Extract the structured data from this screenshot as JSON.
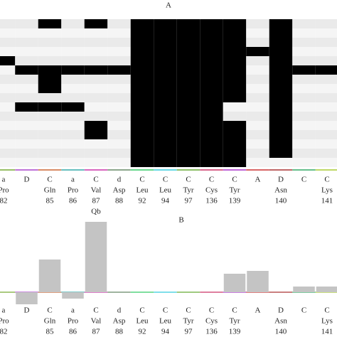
{
  "chart_data": [
    {
      "type": "heatmap",
      "title": "A",
      "categories": [
        "a",
        "D",
        "C",
        "a",
        "C",
        "d",
        "C",
        "C",
        "C",
        "C",
        "C",
        "A",
        "D",
        "C",
        "C"
      ],
      "residues": [
        "Pro",
        null,
        "Gln",
        "Pro",
        "Val",
        "Asp",
        "Leu",
        "Leu",
        "Tyr",
        "Cys",
        "Tyr",
        null,
        "Asn",
        null,
        "Lys"
      ],
      "positions": [
        "82",
        null,
        "85",
        "86",
        "87",
        "88",
        "92",
        "94",
        "97",
        "136",
        "139",
        null,
        "140",
        null,
        "141"
      ],
      "colors": [
        "#eaeaea",
        "#000000"
      ],
      "alt_color": "#f5f5f5",
      "values": [
        [
          0,
          0,
          1,
          0,
          1,
          0,
          1,
          1,
          1,
          1,
          1,
          0,
          1,
          0,
          0
        ],
        [
          0,
          0,
          0,
          0,
          0,
          0,
          1,
          1,
          1,
          1,
          1,
          0,
          1,
          0,
          0
        ],
        [
          0,
          0,
          0,
          0,
          0,
          0,
          1,
          1,
          1,
          1,
          1,
          0,
          1,
          0,
          0
        ],
        [
          0,
          0,
          0,
          0,
          0,
          0,
          1,
          1,
          1,
          1,
          1,
          1,
          1,
          0,
          0
        ],
        [
          1,
          0,
          0,
          0,
          0,
          0,
          1,
          1,
          1,
          1,
          1,
          0,
          1,
          0,
          0
        ],
        [
          0,
          1,
          1,
          1,
          1,
          1,
          1,
          1,
          1,
          1,
          1,
          0,
          1,
          1,
          1
        ],
        [
          0,
          0,
          1,
          0,
          0,
          0,
          1,
          1,
          1,
          1,
          1,
          0,
          1,
          0,
          0
        ],
        [
          0,
          0,
          1,
          0,
          0,
          0,
          1,
          1,
          1,
          1,
          1,
          0,
          1,
          0,
          0
        ],
        [
          0,
          0,
          0,
          0,
          0,
          0,
          1,
          1,
          1,
          1,
          1,
          0,
          1,
          0,
          0
        ],
        [
          0,
          1,
          1,
          1,
          0,
          0,
          1,
          1,
          1,
          1,
          0,
          0,
          1,
          0,
          0
        ],
        [
          0,
          0,
          0,
          0,
          0,
          0,
          1,
          1,
          1,
          1,
          0,
          0,
          1,
          0,
          0
        ],
        [
          0,
          0,
          0,
          0,
          1,
          0,
          1,
          1,
          1,
          1,
          1,
          0,
          1,
          0,
          0
        ],
        [
          0,
          0,
          0,
          0,
          1,
          0,
          1,
          1,
          1,
          1,
          1,
          0,
          1,
          0,
          0
        ],
        [
          0,
          0,
          0,
          0,
          0,
          0,
          1,
          1,
          1,
          1,
          1,
          0,
          1,
          0,
          0
        ],
        [
          0,
          0,
          0,
          0,
          0,
          0,
          1,
          1,
          1,
          1,
          1,
          0,
          1,
          0,
          0
        ],
        [
          0,
          0,
          0,
          0,
          0,
          0,
          1,
          1,
          1,
          1,
          1,
          0,
          0,
          0,
          0
        ]
      ]
    },
    {
      "type": "bar",
      "title": "B",
      "categories": [
        "a",
        "D",
        "C",
        "a",
        "C",
        "d",
        "C",
        "C",
        "C",
        "C",
        "C",
        "A",
        "D",
        "C",
        "C"
      ],
      "residues": [
        "Pro",
        null,
        "Gln",
        "Pro",
        "Val",
        "Asp",
        "Leu",
        "Leu",
        "Tyr",
        "Cys",
        "Tyr",
        null,
        "Asn",
        null,
        "Lys"
      ],
      "positions": [
        "82",
        null,
        "85",
        "86",
        "87",
        "88",
        "92",
        "94",
        "97",
        "136",
        "139",
        null,
        "140",
        null,
        "141"
      ],
      "values": [
        0,
        -17,
        46,
        -9,
        99,
        0,
        0,
        0,
        0,
        0,
        26,
        30,
        0,
        8,
        8
      ],
      "color": "#c4c4c4",
      "ylim": [
        -30,
        100
      ],
      "annotations": [
        {
          "text": "Qb",
          "index": 4
        }
      ]
    }
  ]
}
